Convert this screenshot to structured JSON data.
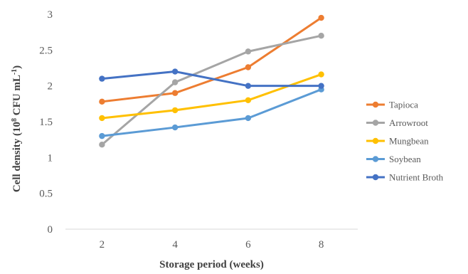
{
  "chart_data": {
    "type": "line",
    "x": [
      2,
      4,
      6,
      8
    ],
    "categories": [
      "2",
      "4",
      "6",
      "8"
    ],
    "series": [
      {
        "name": "Tapioca",
        "color": "#ED7D31",
        "values": [
          1.78,
          1.9,
          2.26,
          2.95
        ]
      },
      {
        "name": "Arrowroot",
        "color": "#A5A5A5",
        "values": [
          1.18,
          2.05,
          2.48,
          2.7
        ]
      },
      {
        "name": "Mungbean",
        "color": "#FFC000",
        "values": [
          1.55,
          1.66,
          1.8,
          2.16
        ]
      },
      {
        "name": "Soybean",
        "color": "#5B9BD5",
        "values": [
          1.3,
          1.42,
          1.55,
          1.95
        ]
      },
      {
        "name": "Nutrient Broth",
        "color": "#4472C4",
        "values": [
          2.1,
          2.2,
          2.0,
          2.0
        ]
      }
    ],
    "ylim": [
      0,
      3
    ],
    "yticks": [
      "0",
      "0.5",
      "1",
      "1.5",
      "2",
      "2.5",
      "3"
    ],
    "xlabel": "Storage period (weeks)",
    "ylabel_main": "Cell density (10",
    "ylabel_exp": "8",
    "ylabel_rest": " CFU mL",
    "ylabel_rest_exp": "-1",
    "ylabel_close": ")",
    "grid": false,
    "legend_position": "right",
    "title": ""
  }
}
